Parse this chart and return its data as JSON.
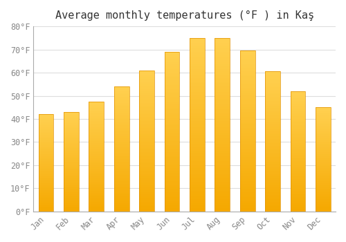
{
  "title": "Average monthly temperatures (°F ) in Kaş",
  "months": [
    "Jan",
    "Feb",
    "Mar",
    "Apr",
    "May",
    "Jun",
    "Jul",
    "Aug",
    "Sep",
    "Oct",
    "Nov",
    "Dec"
  ],
  "values": [
    42,
    43,
    47.5,
    54,
    61,
    69,
    75,
    75,
    69.5,
    60.5,
    52,
    45
  ],
  "bar_color_top": "#FFC933",
  "bar_color_bottom": "#F5A800",
  "bar_color_edge": "#E09000",
  "background_color": "#FFFFFF",
  "grid_color": "#DDDDDD",
  "ylim": [
    0,
    80
  ],
  "yticks": [
    0,
    10,
    20,
    30,
    40,
    50,
    60,
    70,
    80
  ],
  "ytick_labels": [
    "0°F",
    "10°F",
    "20°F",
    "30°F",
    "40°F",
    "50°F",
    "60°F",
    "70°F",
    "80°F"
  ],
  "title_fontsize": 11,
  "tick_fontsize": 8.5,
  "tick_color": "#888888",
  "spine_color": "#AAAAAA",
  "font_family": "monospace",
  "bar_width": 0.6
}
